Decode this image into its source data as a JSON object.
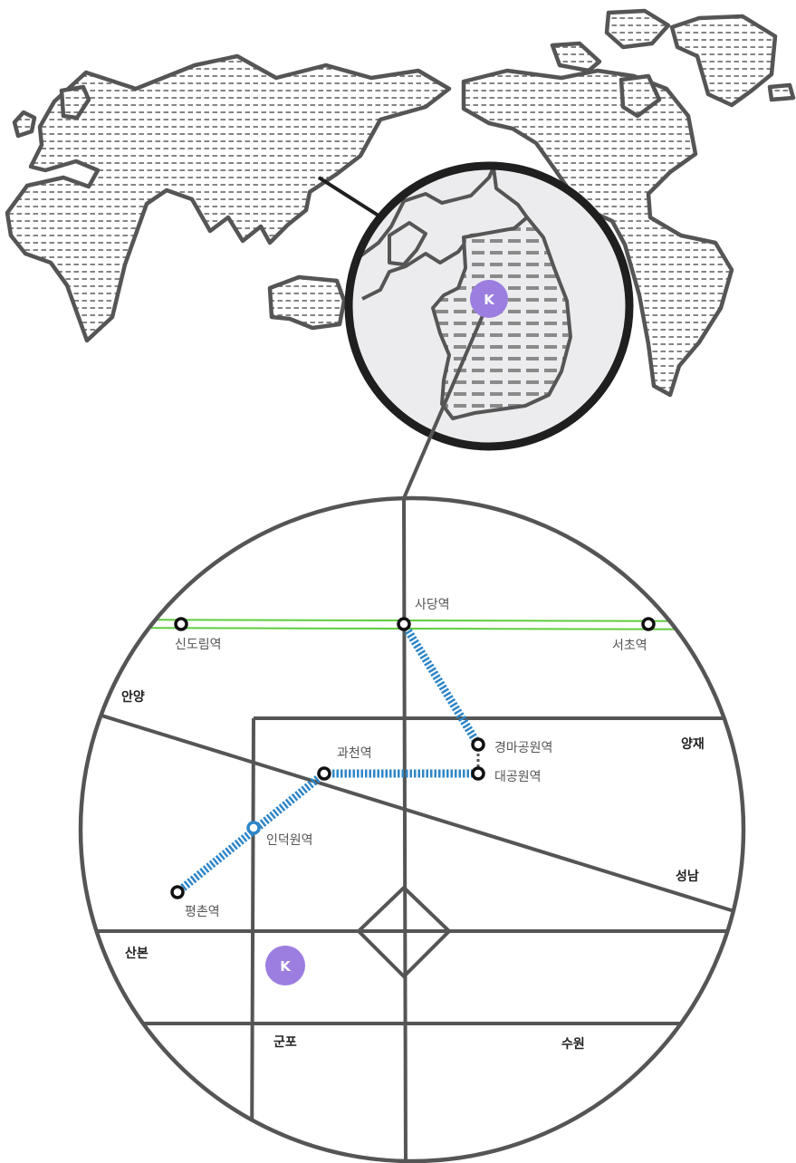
{
  "marker": {
    "letter": "K",
    "color": "#9b7ee0"
  },
  "colors": {
    "outline": "#555555",
    "land_hatch": "#666666",
    "korea_hatch": "#888888",
    "zoom_fill": "#ececee",
    "zoom_ring": "#1f1f1f",
    "line_green": "#5fcc3e",
    "line_blue": "#2f86c8"
  },
  "stations": {
    "sadang": "사당역",
    "sindorim": "신도림역",
    "seocho": "서초역",
    "gyeongma": "경마공원역",
    "daegong": "대공원역",
    "gwacheon": "과천역",
    "indeogwon": "인덕원역",
    "pyeongchon": "평촌역"
  },
  "districts": {
    "anyang": "안양",
    "yangjae": "양재",
    "seongnam": "성남",
    "sanbon": "산본",
    "gunpo": "군포",
    "suwon": "수원"
  }
}
